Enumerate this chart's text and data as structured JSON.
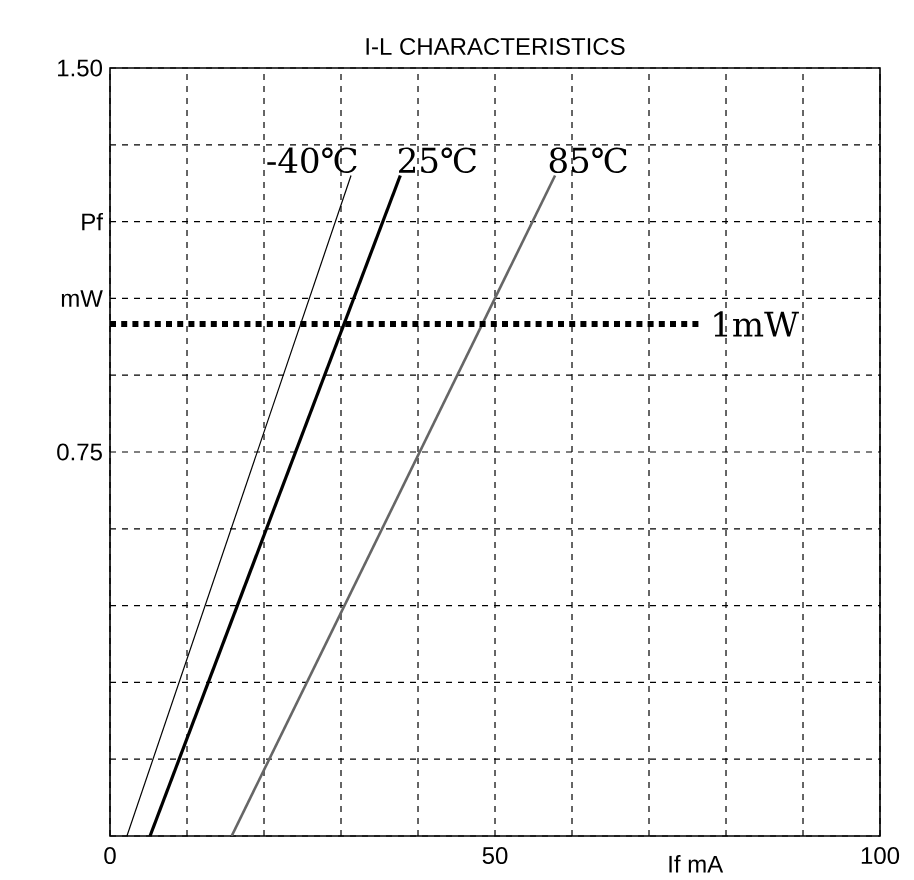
{
  "chart_data": {
    "type": "line",
    "title": "I-L CHARACTERISTICS",
    "xlabel": "If mA",
    "xlim": [
      0,
      100
    ],
    "ylim": [
      0,
      1.5
    ],
    "xticks": [
      0,
      {
        "value": 10,
        "label": null
      },
      {
        "value": 20,
        "label": null
      },
      {
        "value": 30,
        "label": null
      },
      {
        "value": 40,
        "label": null
      },
      50,
      {
        "value": 60,
        "label": null
      },
      {
        "value": 70,
        "label": null
      },
      {
        "value": 80,
        "label": null
      },
      {
        "value": 90,
        "label": null
      },
      100
    ],
    "yticks": [
      {
        "value": 0,
        "label": null
      },
      {
        "value": 0.15,
        "label": null
      },
      {
        "value": 0.3,
        "label": null
      },
      {
        "value": 0.45,
        "label": null
      },
      {
        "value": 0.6,
        "label": null
      },
      0.75,
      {
        "value": 0.9,
        "label": null
      },
      {
        "value": 1.05,
        "label": "mW"
      },
      {
        "value": 1.2,
        "label": "Pf"
      },
      {
        "value": 1.35,
        "label": null
      },
      {
        "value": 1.5,
        "label": "1.50"
      }
    ],
    "grid": true,
    "marker": "none",
    "series": [
      {
        "name": "-40℃",
        "color": "#000000",
        "line_style": "solid",
        "x": [
          2.2,
          31.3
        ],
        "values": [
          0,
          1.29
        ]
      },
      {
        "name": "25℃",
        "color": "#000000",
        "line_style": "solid",
        "x": [
          5.2,
          37.7
        ],
        "values": [
          0,
          1.29
        ]
      },
      {
        "name": "85℃",
        "color": "#666666",
        "line_style": "solid",
        "x": [
          15.8,
          57.8
        ],
        "values": [
          0,
          1.29
        ]
      },
      {
        "name": "1mW",
        "color": "#000000",
        "line_style": "dotted",
        "x": [
          0,
          76.6
        ],
        "values": [
          1.0,
          1.0
        ]
      }
    ]
  }
}
